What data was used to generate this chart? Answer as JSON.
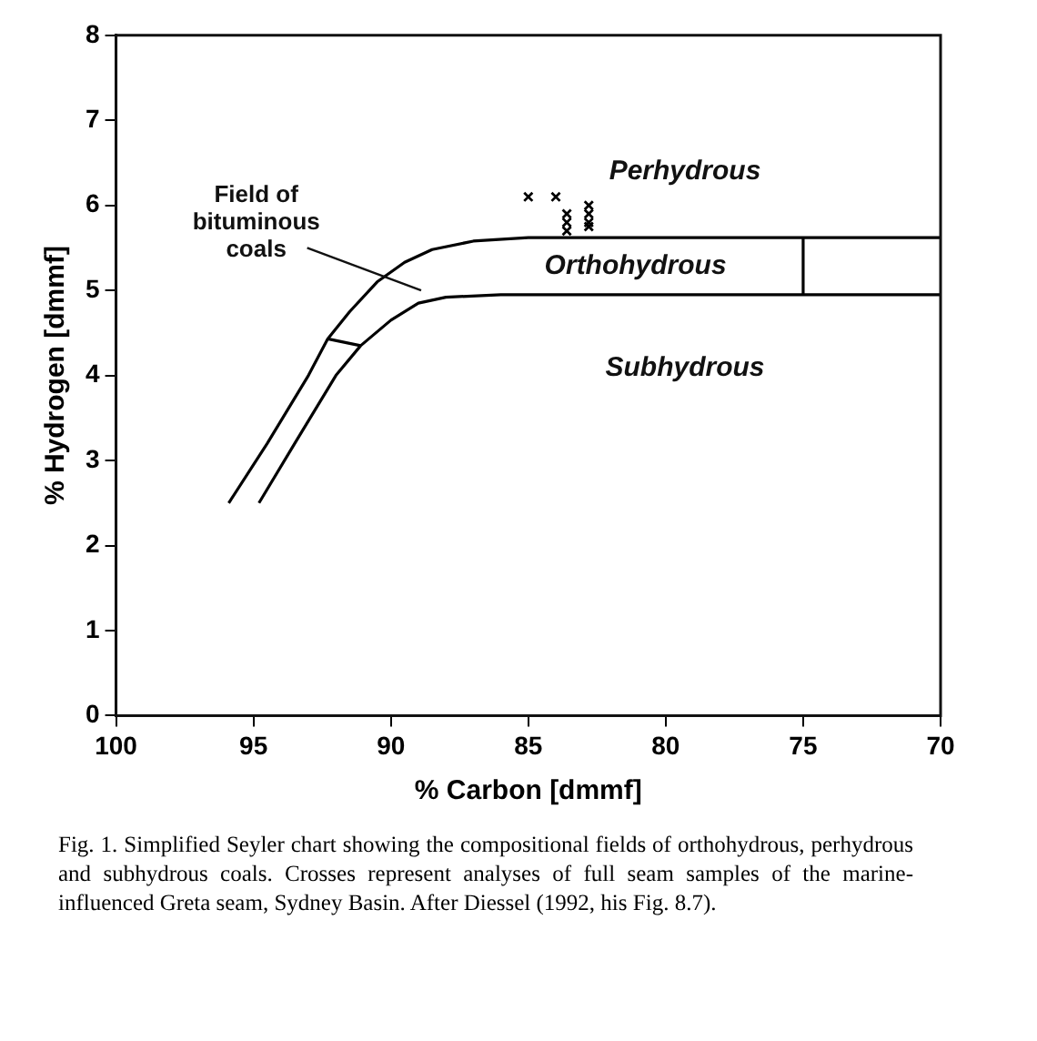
{
  "chart_data": {
    "type": "line",
    "xlabel": "% Carbon [dmmf]",
    "ylabel": "% Hydrogen [dmmf]",
    "xlim": [
      100,
      70
    ],
    "xticks": [
      100,
      95,
      90,
      85,
      80,
      75,
      70
    ],
    "ylim": [
      0,
      8
    ],
    "yticks": [
      0,
      1,
      2,
      3,
      4,
      5,
      6,
      7,
      8
    ],
    "grid": false,
    "legend": false,
    "line_style": "solid",
    "series": [
      {
        "color": "#000000",
        "x": [
          95.9,
          94.5,
          93,
          92.3,
          91.5,
          90.5,
          89.5,
          88.5,
          87,
          85,
          70
        ],
        "values": [
          2.5,
          3.2,
          4.0,
          4.43,
          4.75,
          5.1,
          5.33,
          5.48,
          5.58,
          5.62,
          5.62
        ]
      },
      {
        "color": "#000000",
        "x": [
          94.8,
          93.5,
          92,
          91.1,
          90,
          89,
          88,
          86,
          70
        ],
        "values": [
          2.5,
          3.2,
          4.0,
          4.35,
          4.65,
          4.85,
          4.92,
          4.95,
          4.95
        ]
      },
      {
        "color": "#000000",
        "x": [
          92.3,
          91.1
        ],
        "values": [
          4.43,
          4.35
        ]
      },
      {
        "color": "#000000",
        "x": [
          75,
          75
        ],
        "values": [
          4.95,
          5.62
        ]
      },
      {
        "type": "scatter",
        "color": "#000000",
        "marker": "cross",
        "x": [
          85.0,
          84.0,
          83.6,
          83.6,
          83.6,
          82.8,
          82.8,
          82.8,
          82.8
        ],
        "values": [
          6.1,
          6.1,
          5.9,
          5.8,
          5.7,
          6.0,
          5.9,
          5.8,
          5.75
        ]
      }
    ],
    "annotations": [
      "Perhydrous",
      "Orthohydrous",
      "Subhydrous",
      "Field of\nbituminous\ncoals",
      "Fig. 1. Simplified Seyler chart showing the compositional fields of orthohydrous, perhydrous and subhydrous coals. Crosses represent analyses of full seam samples of the marine-influenced Greta seam, Sydney Basin. After Diessel (1992, his Fig. 8.7)."
    ]
  }
}
